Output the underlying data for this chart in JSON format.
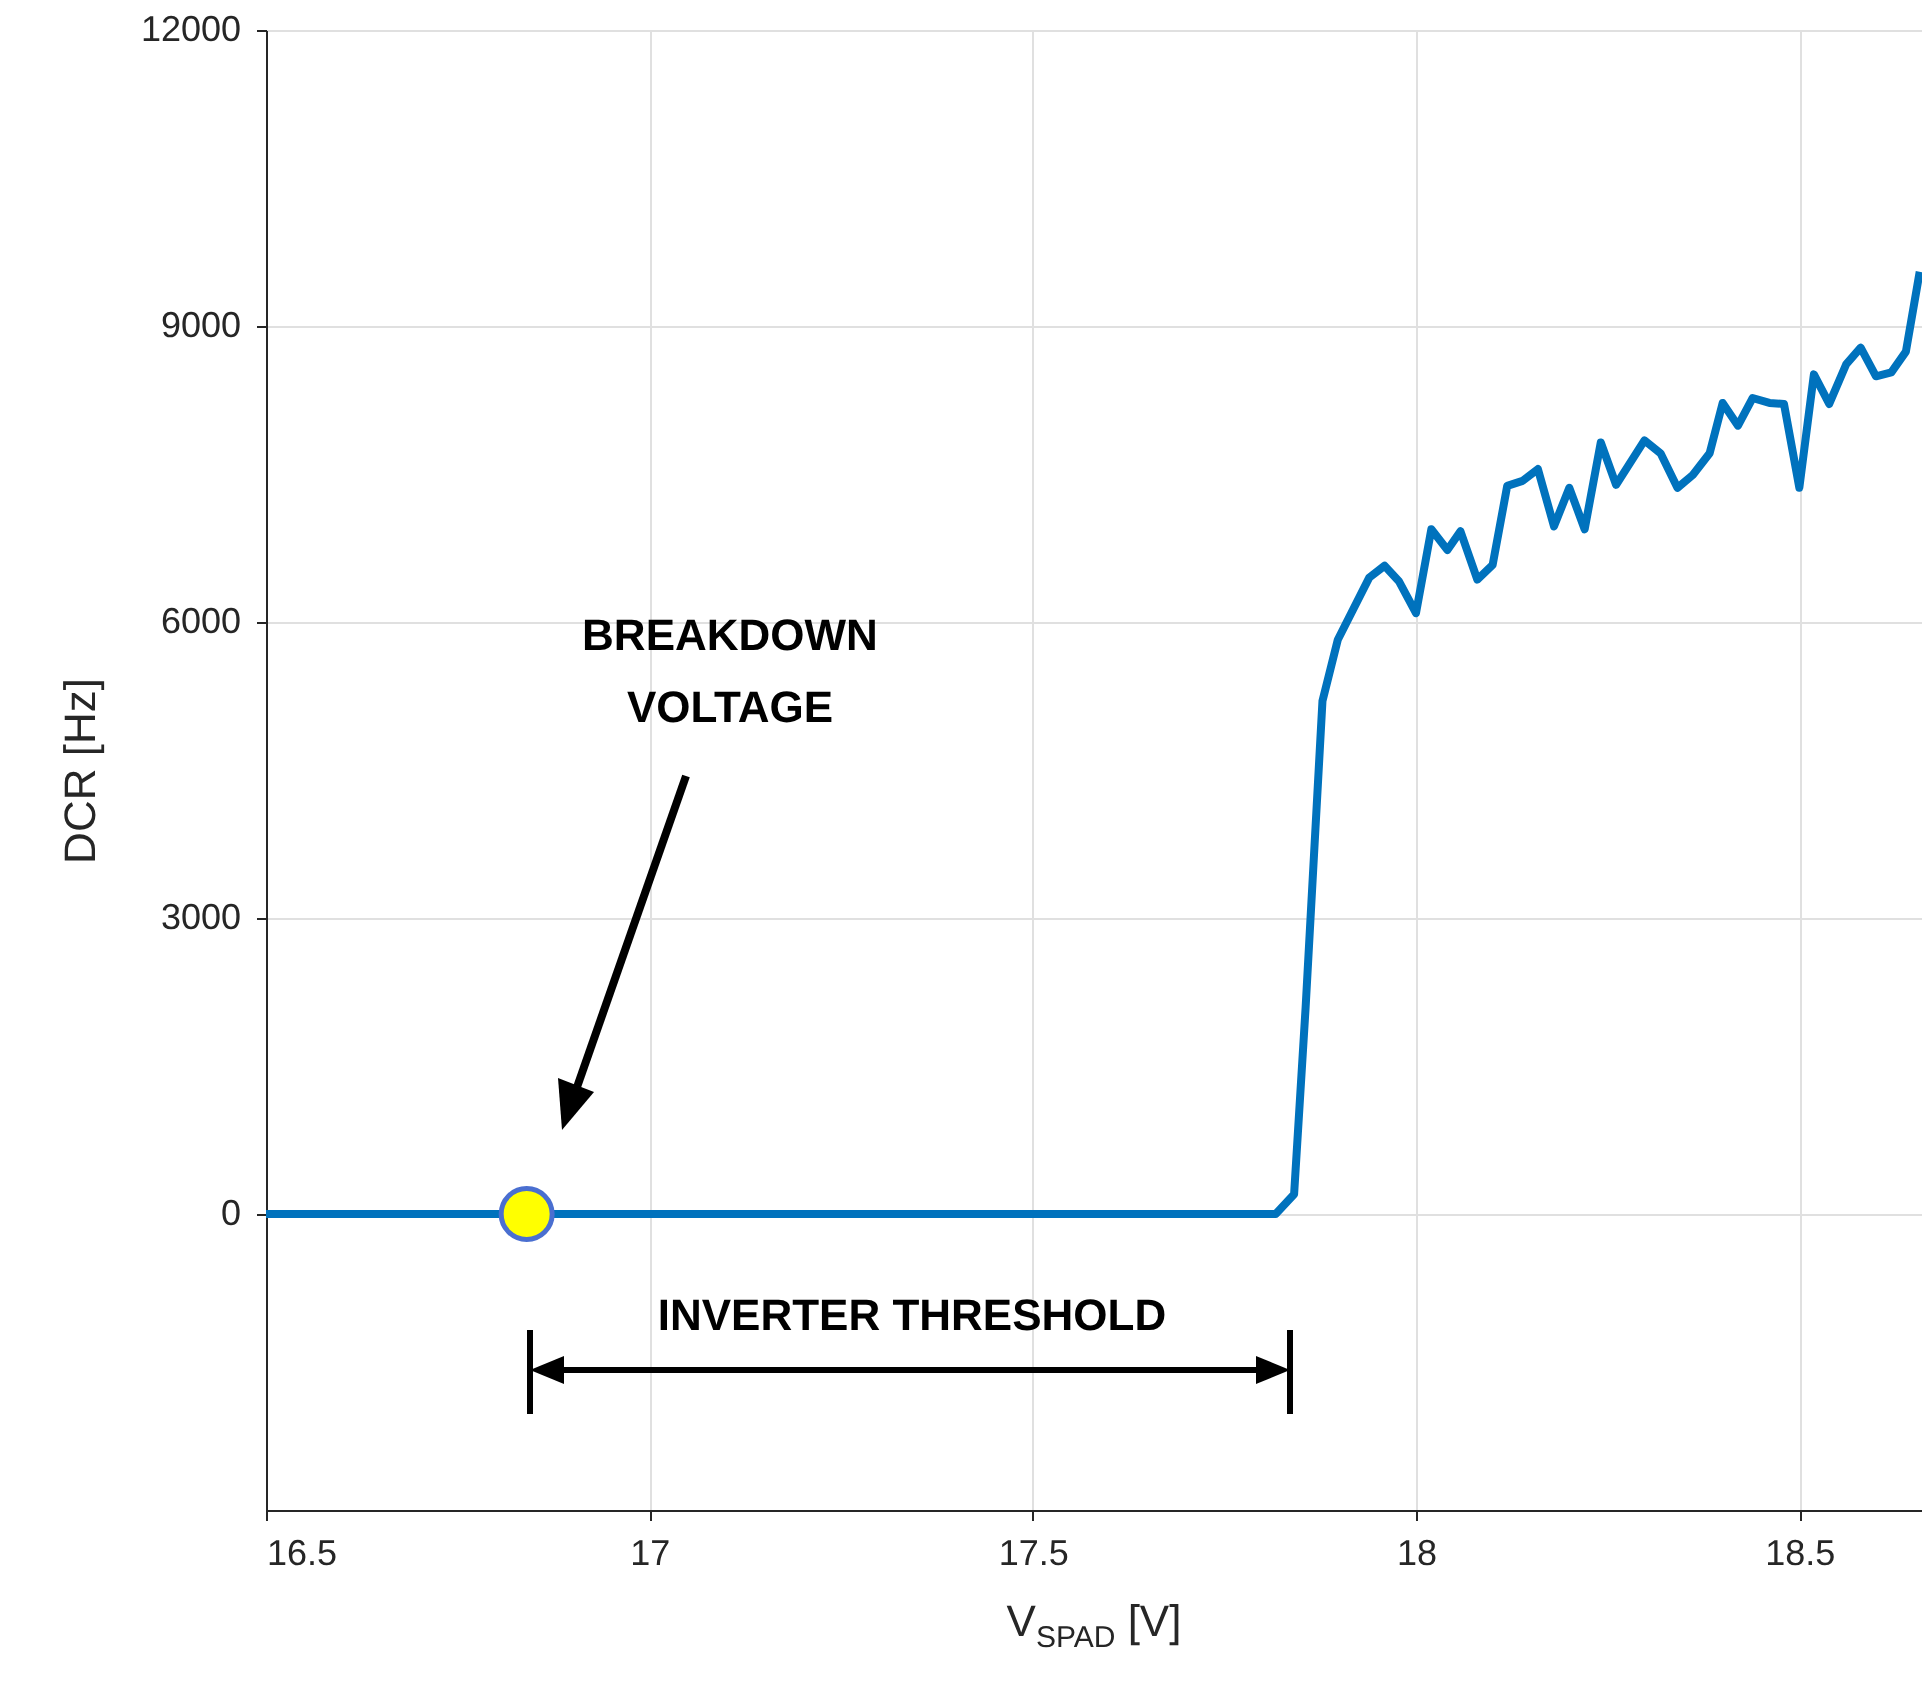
{
  "chart_data": {
    "type": "line",
    "xlabel": "V$_{SPAD}$ [V]",
    "ylabel": "DCR [Hz]",
    "xlim": [
      16.5,
      18.66
    ],
    "ylim": [
      -3000,
      12000
    ],
    "xticks": [
      16.5,
      17,
      17.5,
      18,
      18.5
    ],
    "yticks": [
      0,
      3000,
      6000,
      9000,
      12000
    ],
    "grid": true,
    "series": [
      {
        "color": "#0072bd",
        "x": [
          16.5,
          17.77,
          17.817,
          17.841,
          17.856,
          17.878,
          17.898,
          17.939,
          17.959,
          17.978,
          18.0,
          18.02,
          18.041,
          18.058,
          18.08,
          18.1,
          18.119,
          18.139,
          18.159,
          18.18,
          18.2,
          18.22,
          18.241,
          18.261,
          18.298,
          18.319,
          18.341,
          18.361,
          18.383,
          18.4,
          18.42,
          18.439,
          18.461,
          18.48,
          18.5,
          18.519,
          18.539,
          18.561,
          18.58,
          18.6,
          18.62,
          18.639,
          18.657
        ],
        "values": [
          0,
          0,
          0,
          200,
          2090,
          5200,
          5820,
          6450,
          6570,
          6410,
          6090,
          6940,
          6730,
          6920,
          6430,
          6580,
          7380,
          7430,
          7550,
          6970,
          7360,
          6940,
          7820,
          7390,
          7840,
          7710,
          7360,
          7490,
          7710,
          8220,
          7990,
          8270,
          8220,
          8210,
          7360,
          8510,
          8210,
          8610,
          8780,
          8490,
          8530,
          8740,
          9550
        ]
      },
      {
        "type": "scatter",
        "color": "#ffff00",
        "marker": "circle",
        "x": [
          16.84
        ],
        "values": [
          0
        ]
      }
    ],
    "annotations": [
      "BREAKDOWN VOLTAGE",
      "INVERTER THRESHOLD"
    ]
  }
}
